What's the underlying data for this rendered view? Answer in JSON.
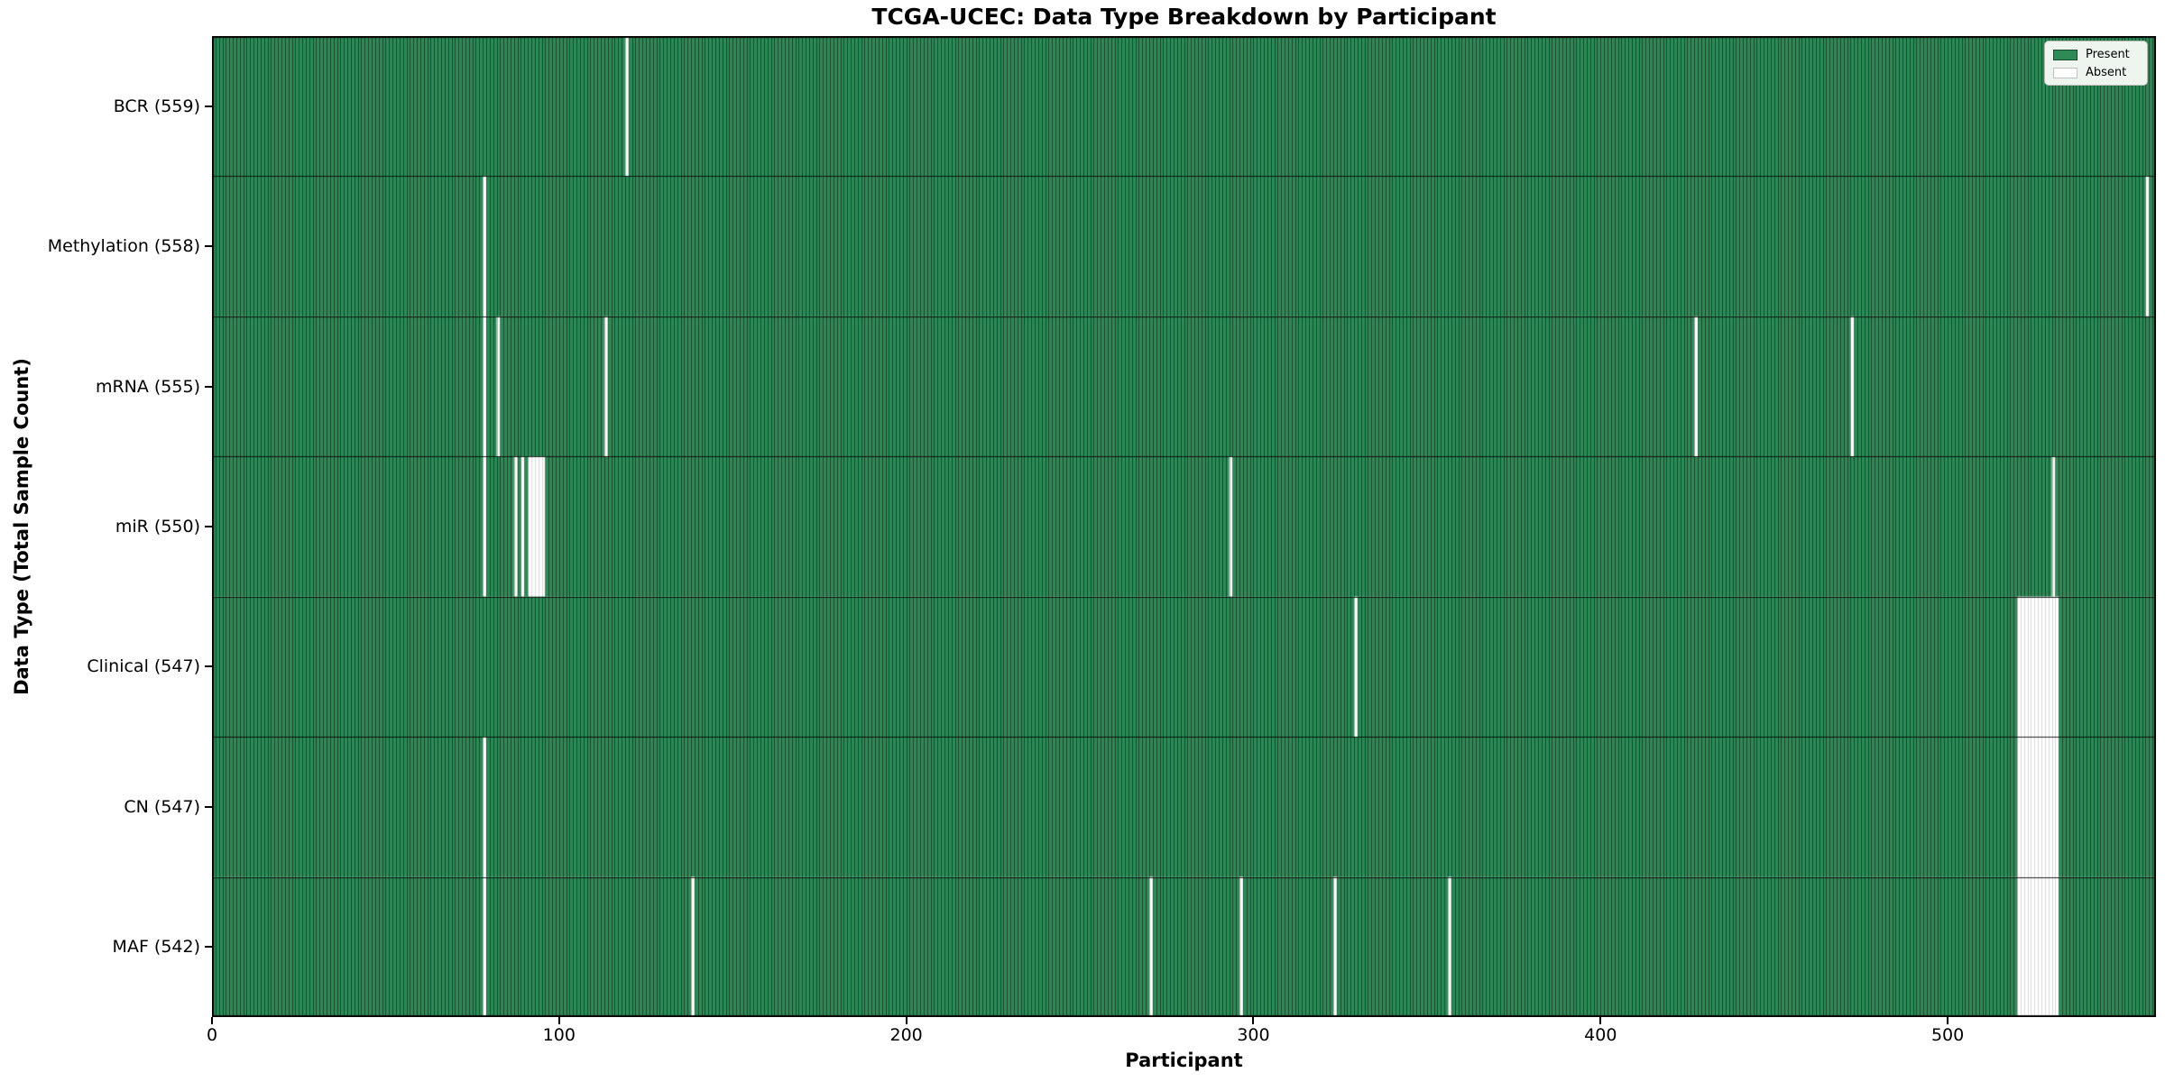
{
  "chart_data": {
    "type": "heatmap",
    "title": "TCGA-UCEC: Data Type Breakdown by Participant",
    "xlabel": "Participant",
    "ylabel": "Data Type (Total Sample Count)",
    "x_ticks": [
      0,
      100,
      200,
      300,
      400,
      500
    ],
    "xlim": [
      0,
      560
    ],
    "n_participants": 560,
    "grid": false,
    "colors": {
      "present": "#2e8b57",
      "absent": "#ffffff",
      "present_edge": "rgba(0,0,0,0.50)",
      "absent_edge": "rgba(0,0,0,0.15)",
      "mixed_edge": "rgba(0,0,0,0.30)",
      "row_boundary": "rgba(0,0,0,0.85)",
      "frame": "#000000"
    },
    "legend": {
      "position": "upper right",
      "entries": [
        {
          "label": "Present",
          "color": "#2e8b57"
        },
        {
          "label": "Absent",
          "color": "#ffffff"
        }
      ]
    },
    "rows": [
      {
        "label": "BCR (559)",
        "data_type": "BCR",
        "total": 559,
        "absent_participants": [
          119
        ]
      },
      {
        "label": "Methylation (558)",
        "data_type": "Methylation",
        "total": 558,
        "absent_participants": [
          78,
          557
        ]
      },
      {
        "label": "mRNA (555)",
        "data_type": "mRNA",
        "total": 555,
        "absent_participants": [
          78,
          82,
          113,
          427,
          472
        ]
      },
      {
        "label": "miR (550)",
        "data_type": "miR",
        "total": 550,
        "absent_participants": [
          78,
          87,
          89,
          91,
          92,
          93,
          94,
          95,
          293,
          530
        ]
      },
      {
        "label": "Clinical (547)",
        "data_type": "Clinical",
        "total": 547,
        "absent_participants": [
          329,
          520,
          521,
          522,
          523,
          524,
          525,
          526,
          527,
          528,
          529,
          530,
          531
        ]
      },
      {
        "label": "CN (547)",
        "data_type": "CN",
        "total": 547,
        "absent_participants": [
          78,
          520,
          521,
          522,
          523,
          524,
          525,
          526,
          527,
          528,
          529,
          530,
          531
        ]
      },
      {
        "label": "MAF (542)",
        "data_type": "MAF",
        "total": 542,
        "absent_participants": [
          78,
          138,
          270,
          296,
          323,
          356,
          520,
          521,
          522,
          523,
          524,
          525,
          526,
          527,
          528,
          529,
          530,
          531
        ]
      }
    ]
  }
}
